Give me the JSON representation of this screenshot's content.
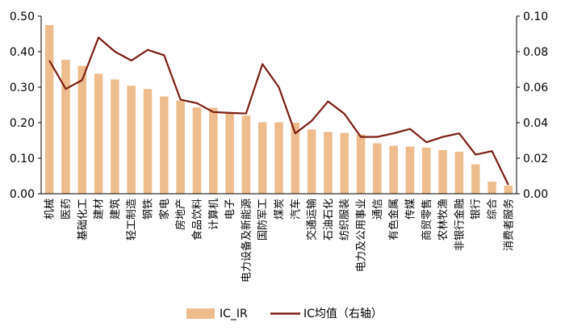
{
  "chart_data": {
    "type": "bar",
    "categories": [
      "机械",
      "医药",
      "基础化工",
      "建材",
      "建筑",
      "轻工制造",
      "钢铁",
      "家电",
      "房地产",
      "食品饮料",
      "计算机",
      "电子",
      "电力设备及新能源",
      "国防军工",
      "煤炭",
      "汽车",
      "交通运输",
      "石油石化",
      "纺织服装",
      "电力及公用事业",
      "通信",
      "有色金属",
      "传媒",
      "商贸零售",
      "农林牧渔",
      "非银行金融",
      "银行",
      "综合",
      "消费者服务"
    ],
    "series": [
      {
        "name": "IC_IR",
        "type": "bar",
        "axis": "left",
        "values": [
          0.475,
          0.377,
          0.36,
          0.338,
          0.322,
          0.304,
          0.295,
          0.274,
          0.262,
          0.243,
          0.242,
          0.228,
          0.22,
          0.201,
          0.201,
          0.2,
          0.181,
          0.174,
          0.171,
          0.167,
          0.142,
          0.135,
          0.133,
          0.13,
          0.123,
          0.118,
          0.083,
          0.034,
          0.023
        ]
      },
      {
        "name": "IC均值（右轴）",
        "type": "line",
        "axis": "right",
        "values": [
          0.075,
          0.059,
          0.064,
          0.088,
          0.08,
          0.075,
          0.081,
          0.078,
          0.053,
          0.051,
          0.046,
          0.0455,
          0.0452,
          0.073,
          0.06,
          0.034,
          0.041,
          0.052,
          0.045,
          0.032,
          0.032,
          0.034,
          0.0365,
          0.029,
          0.032,
          0.034,
          0.022,
          0.024,
          0.005
        ]
      }
    ],
    "y_left": {
      "ylim": [
        0,
        0.5
      ],
      "ticks": [
        "0.00",
        "0.10",
        "0.20",
        "0.30",
        "0.40",
        "0.50"
      ]
    },
    "y_right": {
      "ylim": [
        0,
        0.1
      ],
      "ticks": [
        "0.00",
        "0.02",
        "0.04",
        "0.06",
        "0.08",
        "0.10"
      ]
    },
    "legend": {
      "placement": "bottom-center"
    },
    "colors": {
      "bar": "#EDBD8D",
      "line": "#7A1E12",
      "axis": "#000000"
    },
    "grid": false
  }
}
